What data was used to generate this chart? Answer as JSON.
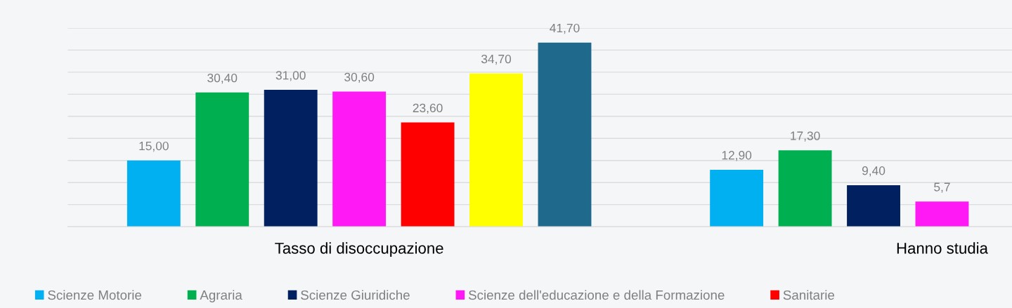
{
  "chart_data": {
    "type": "bar",
    "categories": [
      "Tasso di disoccupazione",
      "Hanno studia"
    ],
    "series": [
      {
        "name": "Scienze Motorie",
        "color": "#00b0f0",
        "values": [
          15.0,
          12.9
        ],
        "value_labels": [
          "15,00",
          "12,90"
        ]
      },
      {
        "name": "Agraria",
        "color": "#00b050",
        "values": [
          30.4,
          17.3
        ],
        "value_labels": [
          "30,40",
          "17,30"
        ]
      },
      {
        "name": "Scienze Giuridiche",
        "color": "#002060",
        "values": [
          31.0,
          9.4
        ],
        "value_labels": [
          "31,00",
          "9,40"
        ]
      },
      {
        "name": "Scienze dell'educazione e della Formazione",
        "color": "#ff19f5",
        "values": [
          30.6,
          5.7
        ],
        "value_labels": [
          "30,60",
          "5,7"
        ]
      },
      {
        "name": "Sanitarie",
        "color": "#ff0000",
        "values": [
          23.6,
          null
        ],
        "value_labels": [
          "23,60",
          null
        ]
      },
      {
        "color": "#ffff00",
        "values": [
          34.7,
          null
        ],
        "value_labels": [
          "34,70",
          null
        ]
      },
      {
        "color": "#1f6a8c",
        "values": [
          41.7,
          null
        ],
        "value_labels": [
          "41,70",
          null
        ]
      }
    ],
    "ylim": [
      0,
      45
    ],
    "yticks": [
      {
        "value": 0,
        "label": null
      },
      {
        "value": 5,
        "label": null
      },
      {
        "value": 10,
        "label": null
      },
      {
        "value": 15,
        "label": null
      },
      {
        "value": 20,
        "label": null
      },
      {
        "value": 25,
        "label": null
      },
      {
        "value": 30,
        "label": null
      },
      {
        "value": 35,
        "label": null
      },
      {
        "value": 40,
        "label": null
      },
      {
        "value": 45,
        "label": null
      }
    ],
    "tick_labels": "x",
    "grid": "y",
    "legend": "bottom"
  }
}
